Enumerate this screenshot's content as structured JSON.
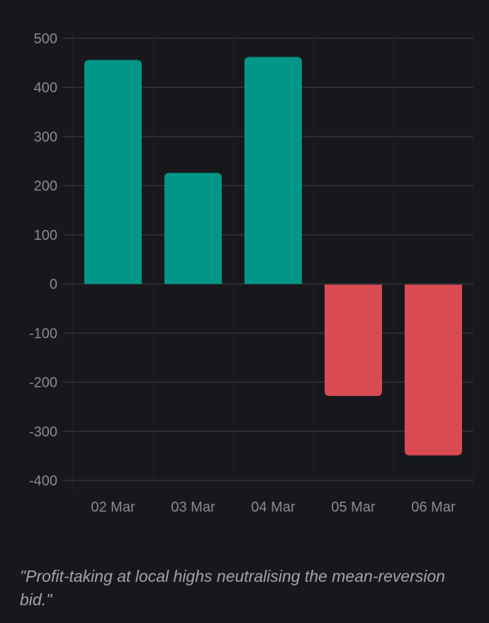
{
  "chart_data": {
    "type": "bar",
    "title": "",
    "xlabel": "",
    "ylabel": "",
    "categories": [
      "02 Mar",
      "03 Mar",
      "04 Mar",
      "05 Mar",
      "06 Mar"
    ],
    "values": [
      456,
      226,
      462,
      -228,
      -349
    ],
    "ylim": [
      -400,
      500
    ],
    "yticks": [
      500,
      400,
      300,
      200,
      100,
      0,
      -100,
      -200,
      -300,
      -400
    ],
    "grid": true,
    "legend": null,
    "colors": {
      "positive": "#009688",
      "negative": "#d84b52"
    }
  },
  "caption": "\"Profit-taking at local highs neutralising the mean-reversion bid.\""
}
